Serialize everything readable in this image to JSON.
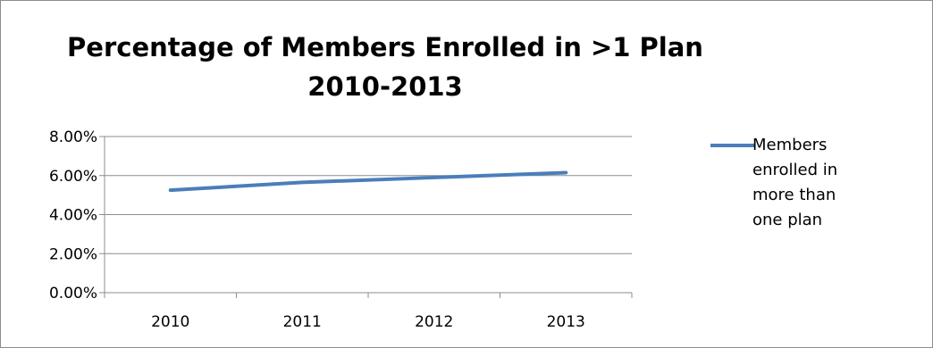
{
  "chart_data": {
    "type": "line",
    "title": [
      "Percentage of Members Enrolled in >1 Plan",
      "2010-2013"
    ],
    "categories": [
      "2010",
      "2011",
      "2012",
      "2013"
    ],
    "series": [
      {
        "name": "Members enrolled in more than one plan",
        "values": [
          5.25,
          5.65,
          5.9,
          6.15
        ],
        "color": "#4a7ebb"
      }
    ],
    "ylim": [
      0,
      8
    ],
    "yticks": [
      "0.00%",
      "2.00%",
      "4.00%",
      "6.00%",
      "8.00%"
    ],
    "grid": true,
    "legend_position": "right"
  },
  "legend_lines": [
    "Members",
    "enrolled in",
    "more than",
    "one plan"
  ]
}
